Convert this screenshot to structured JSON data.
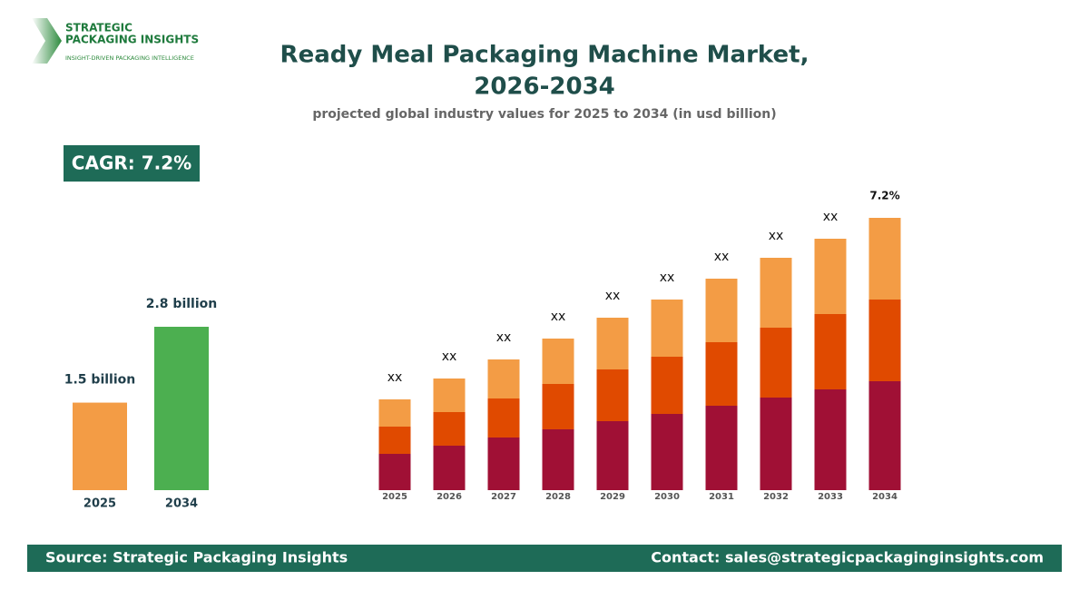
{
  "logo": {
    "line1": "STRATEGIC",
    "line2": "PACKAGING INSIGHTS",
    "tagline": "INSIGHT-DRIVEN PACKAGING INTELLIGENCE"
  },
  "header": {
    "title": [
      "Ready Meal Packaging Machine Market,",
      "2026-2034"
    ],
    "subtitle": "projected global industry values for 2025 to 2034 (in usd billion)"
  },
  "cagr": "CAGR: 7.2%",
  "chart_data": [
    {
      "type": "bar",
      "categories": [
        "2025",
        "2034"
      ],
      "values": [
        1.5,
        2.8
      ],
      "value_labels": [
        "1.5 billion",
        "2.8 billion"
      ],
      "colors": [
        "#f39c45",
        "#4caf50"
      ],
      "ylim": [
        0,
        4.2
      ]
    },
    {
      "type": "stacked_bar",
      "categories": [
        "2025",
        "2026",
        "2027",
        "2028",
        "2029",
        "2030",
        "2031",
        "2032",
        "2033",
        "2034"
      ],
      "series": [
        {
          "color": "#a01035",
          "values": [
            40,
            49,
            58,
            67,
            76,
            84,
            93,
            102,
            111,
            120
          ]
        },
        {
          "color": "#e04a00",
          "values": [
            30,
            37,
            43,
            50,
            57,
            63,
            70,
            77,
            83,
            90
          ]
        },
        {
          "color": "#f39c45",
          "values": [
            30,
            37,
            43,
            50,
            57,
            63,
            70,
            77,
            83,
            90
          ]
        }
      ],
      "top_labels": [
        "xx",
        "xx",
        "xx",
        "xx",
        "xx",
        "xx",
        "xx",
        "xx",
        "xx",
        "7.2%"
      ],
      "ylim": [
        0,
        300
      ]
    }
  ],
  "footer": {
    "source": "Source: Strategic Packaging Insights",
    "contact": "Contact: sales@strategicpackaginginsights.com"
  }
}
